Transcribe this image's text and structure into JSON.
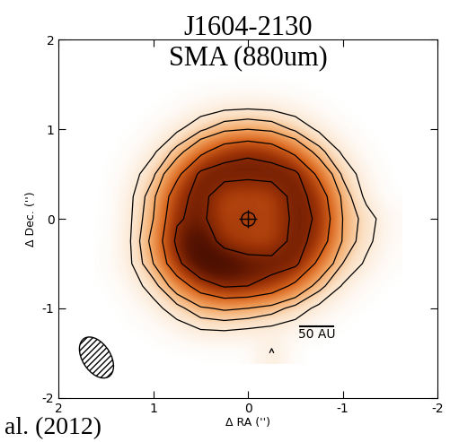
{
  "chart_data": {
    "type": "image",
    "title": "J1604-2130",
    "subtitle": "SMA (880um)",
    "x_label": "Δ RA ('')",
    "y_label": "Δ Dec. ('')",
    "annotation": "al. (2012)",
    "xlim": [
      2,
      -2
    ],
    "ylim": [
      -2,
      2
    ],
    "xticks": [
      2,
      1,
      0,
      -1,
      -2
    ],
    "yticks": [
      -2,
      -1,
      0,
      1,
      2
    ],
    "x": [
      1.5,
      1.25,
      1.0,
      0.75,
      0.5,
      0.25,
      0,
      -0.25,
      -0.5,
      -0.75,
      -1.0,
      -1.25,
      -1.5
    ],
    "y": [
      1.5,
      1.25,
      1.0,
      0.75,
      0.5,
      0.25,
      0,
      -0.25,
      -0.5,
      -0.75,
      -1.0,
      -1.25,
      -1.5
    ],
    "cells": [
      [
        0,
        0,
        0,
        0,
        0,
        0,
        0,
        0,
        0,
        0,
        0,
        0,
        0
      ],
      [
        0,
        0,
        0,
        0.1,
        0.4,
        0.7,
        0.8,
        0.7,
        0.4,
        0.1,
        0,
        0,
        0
      ],
      [
        0,
        0,
        0.2,
        0.8,
        1.8,
        2.7,
        3.0,
        2.7,
        1.8,
        0.8,
        0.2,
        0,
        0
      ],
      [
        0,
        0.1,
        0.8,
        2.4,
        4.5,
        6.2,
        6.8,
        6.2,
        4.5,
        2.4,
        0.8,
        0.1,
        0
      ],
      [
        0,
        0.4,
        1.8,
        4.5,
        7.4,
        7.8,
        7.5,
        7.8,
        7.4,
        4.5,
        1.8,
        0.4,
        0
      ],
      [
        0,
        0.7,
        2.7,
        6.2,
        7.8,
        5.5,
        5.5,
        5.5,
        7.8,
        6.2,
        2.7,
        0.7,
        0
      ],
      [
        0,
        0.8,
        3.0,
        6.8,
        7.5,
        5.5,
        6.5,
        5.5,
        7.5,
        6.8,
        3.0,
        1.5,
        0.3
      ],
      [
        0,
        0.9,
        3.5,
        7.4,
        9.0,
        6.0,
        5.5,
        5.5,
        7.8,
        6.2,
        2.9,
        1.3,
        0.2
      ],
      [
        0.1,
        0.8,
        3.0,
        6.5,
        9.0,
        9.2,
        8.0,
        7.8,
        7.4,
        4.5,
        2.0,
        0.8,
        0.1
      ],
      [
        0,
        0.4,
        1.5,
        3.8,
        6.0,
        7.2,
        7.0,
        6.2,
        4.5,
        2.4,
        0.9,
        0.2,
        0
      ],
      [
        0,
        0.1,
        0.6,
        1.6,
        2.8,
        3.2,
        3.0,
        2.5,
        1.6,
        0.7,
        0.2,
        0,
        0
      ],
      [
        0,
        0,
        0.1,
        0.4,
        0.9,
        1.0,
        0.8,
        0.6,
        0.4,
        0.1,
        0,
        0,
        0
      ],
      [
        0,
        0,
        0,
        0,
        0,
        0,
        0,
        1.1,
        0,
        0,
        0,
        0,
        0
      ]
    ],
    "clim": [
      0,
      9.5
    ],
    "contour_levels": [
      1,
      2,
      3,
      5,
      7
    ],
    "star": [
      0,
      0
    ],
    "beam": {
      "x": 1.6,
      "y": -1.55,
      "width": 0.3,
      "height": 0.5,
      "angle": -30
    },
    "scale_bar": {
      "label": "50 AU",
      "length": 0.35
    }
  }
}
